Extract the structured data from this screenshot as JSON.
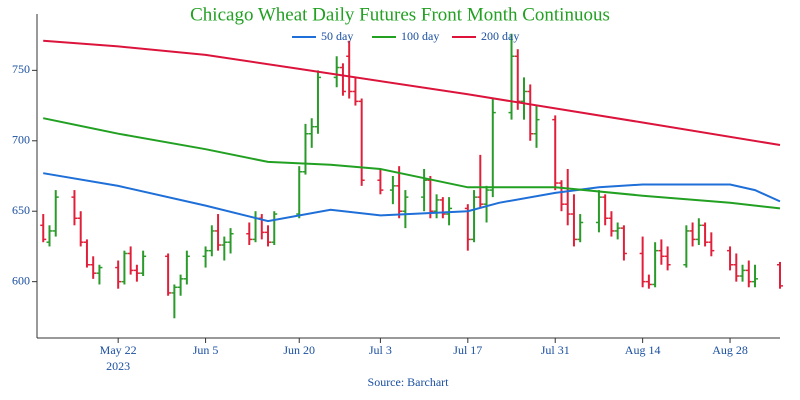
{
  "chart_data": {
    "type": "ohlc",
    "title": "Chicago Wheat Daily Futures Front Month Continuous",
    "source": "Source: Barchart",
    "x": [
      "2023-05-10",
      "2023-05-11",
      "2023-05-12",
      "2023-05-15",
      "2023-05-16",
      "2023-05-17",
      "2023-05-18",
      "2023-05-19",
      "2023-05-22",
      "2023-05-23",
      "2023-05-24",
      "2023-05-25",
      "2023-05-26",
      "2023-05-30",
      "2023-05-31",
      "2023-06-01",
      "2023-06-02",
      "2023-06-05",
      "2023-06-06",
      "2023-06-07",
      "2023-06-08",
      "2023-06-09",
      "2023-06-12",
      "2023-06-13",
      "2023-06-14",
      "2023-06-15",
      "2023-06-16",
      "2023-06-20",
      "2023-06-21",
      "2023-06-22",
      "2023-06-23",
      "2023-06-26",
      "2023-06-27",
      "2023-06-28",
      "2023-06-29",
      "2023-06-30",
      "2023-07-03",
      "2023-07-05",
      "2023-07-06",
      "2023-07-07",
      "2023-07-10",
      "2023-07-11",
      "2023-07-12",
      "2023-07-13",
      "2023-07-14",
      "2023-07-17",
      "2023-07-18",
      "2023-07-19",
      "2023-07-20",
      "2023-07-21",
      "2023-07-24",
      "2023-07-25",
      "2023-07-26",
      "2023-07-27",
      "2023-07-28",
      "2023-07-31",
      "2023-08-01",
      "2023-08-02",
      "2023-08-03",
      "2023-08-04",
      "2023-08-07",
      "2023-08-08",
      "2023-08-09",
      "2023-08-10",
      "2023-08-11",
      "2023-08-14",
      "2023-08-15",
      "2023-08-16",
      "2023-08-17",
      "2023-08-18",
      "2023-08-21",
      "2023-08-22",
      "2023-08-23",
      "2023-08-24",
      "2023-08-25",
      "2023-08-28",
      "2023-08-29",
      "2023-08-30",
      "2023-08-31",
      "2023-09-01",
      "2023-09-05"
    ],
    "open": [
      640,
      628,
      636,
      660,
      645,
      628,
      612,
      606,
      610,
      600,
      620,
      608,
      606,
      618,
      592,
      596,
      602,
      618,
      622,
      636,
      626,
      628,
      634,
      630,
      645,
      635,
      628,
      648,
      678,
      705,
      710,
      745,
      752,
      760,
      735,
      728,
      672,
      665,
      668,
      650,
      660,
      672,
      650,
      658,
      648,
      652,
      630,
      660,
      655,
      665,
      720,
      760,
      728,
      735,
      705,
      715,
      670,
      655,
      648,
      630,
      642,
      660,
      645,
      636,
      638,
      620,
      600,
      598,
      622,
      618,
      612,
      636,
      630,
      640,
      628,
      622,
      612,
      604,
      608,
      600,
      612
    ],
    "high": [
      648,
      640,
      665,
      665,
      650,
      630,
      618,
      612,
      615,
      622,
      625,
      612,
      622,
      620,
      598,
      605,
      622,
      625,
      640,
      648,
      632,
      638,
      642,
      650,
      648,
      640,
      650,
      682,
      712,
      716,
      750,
      760,
      755,
      771,
      745,
      730,
      680,
      675,
      682,
      665,
      680,
      675,
      662,
      660,
      660,
      655,
      665,
      690,
      668,
      730,
      776,
      765,
      745,
      740,
      725,
      718,
      672,
      680,
      662,
      648,
      665,
      662,
      650,
      642,
      640,
      632,
      605,
      628,
      630,
      625,
      640,
      642,
      645,
      642,
      635,
      625,
      620,
      612,
      615,
      612,
      614
    ],
    "low": [
      628,
      625,
      632,
      640,
      625,
      610,
      602,
      598,
      595,
      598,
      605,
      600,
      604,
      590,
      574,
      590,
      598,
      610,
      618,
      622,
      615,
      620,
      626,
      628,
      630,
      625,
      626,
      645,
      676,
      695,
      705,
      738,
      732,
      730,
      725,
      668,
      662,
      655,
      645,
      638,
      650,
      645,
      645,
      645,
      640,
      622,
      628,
      652,
      642,
      660,
      715,
      722,
      715,
      700,
      695,
      665,
      650,
      640,
      625,
      628,
      635,
      640,
      632,
      630,
      615,
      596,
      595,
      596,
      612,
      608,
      610,
      625,
      626,
      625,
      618,
      608,
      600,
      600,
      596,
      596,
      595
    ],
    "close": [
      630,
      636,
      660,
      645,
      628,
      612,
      606,
      610,
      600,
      620,
      608,
      606,
      618,
      592,
      596,
      602,
      618,
      622,
      636,
      626,
      628,
      634,
      630,
      645,
      635,
      628,
      648,
      678,
      705,
      710,
      745,
      752,
      735,
      735,
      728,
      672,
      665,
      668,
      650,
      660,
      672,
      650,
      658,
      648,
      652,
      630,
      660,
      655,
      665,
      720,
      760,
      728,
      735,
      705,
      715,
      670,
      655,
      648,
      630,
      642,
      660,
      645,
      636,
      638,
      620,
      600,
      598,
      622,
      618,
      612,
      636,
      630,
      640,
      628,
      622,
      612,
      604,
      608,
      600,
      602,
      597
    ],
    "up_color": "#2a9a2a",
    "down_color": "#e0203a",
    "series": [
      {
        "name": "50 day",
        "color": "#1f6fd8",
        "x": [
          "2023-05-10",
          "2023-05-22",
          "2023-06-05",
          "2023-06-15",
          "2023-06-25",
          "2023-07-03",
          "2023-07-17",
          "2023-07-22",
          "2023-07-31",
          "2023-08-07",
          "2023-08-14",
          "2023-08-28",
          "2023-09-01",
          "2023-09-05"
        ],
        "values": [
          677,
          668,
          654,
          643,
          651,
          647,
          650,
          656,
          663,
          667,
          669,
          669,
          665,
          657
        ]
      },
      {
        "name": "100 day",
        "color": "#22a022",
        "x": [
          "2023-05-10",
          "2023-05-22",
          "2023-06-05",
          "2023-06-15",
          "2023-06-25",
          "2023-07-03",
          "2023-07-17",
          "2023-07-31",
          "2023-08-14",
          "2023-08-28",
          "2023-09-05"
        ],
        "values": [
          716,
          705,
          694,
          685,
          683,
          680,
          667,
          667,
          661,
          656,
          652
        ]
      },
      {
        "name": "200 day",
        "color": "#dc143c",
        "x": [
          "2023-05-10",
          "2023-05-22",
          "2023-06-05",
          "2023-06-20",
          "2023-07-17",
          "2023-07-31",
          "2023-08-14",
          "2023-09-05"
        ],
        "values": [
          771,
          767,
          761,
          751,
          733,
          723,
          713,
          697
        ]
      }
    ],
    "xlim": [
      "2023-05-09",
      "2023-09-05"
    ],
    "xticks": [
      {
        "value": "2023-05-22",
        "label": "May 22"
      },
      {
        "value": "2023-06-05",
        "label": "Jun 5"
      },
      {
        "value": "2023-06-20",
        "label": "Jun 20"
      },
      {
        "value": "2023-07-03",
        "label": "Jul 3"
      },
      {
        "value": "2023-07-17",
        "label": "Jul 17"
      },
      {
        "value": "2023-07-31",
        "label": "Jul 31"
      },
      {
        "value": "2023-08-14",
        "label": "Aug 14"
      },
      {
        "value": "2023-08-28",
        "label": "Aug 28"
      }
    ],
    "x_year_label": "2023",
    "ylim": [
      560,
      790
    ],
    "yticks": [
      600,
      650,
      700,
      750
    ],
    "legend": "top"
  }
}
